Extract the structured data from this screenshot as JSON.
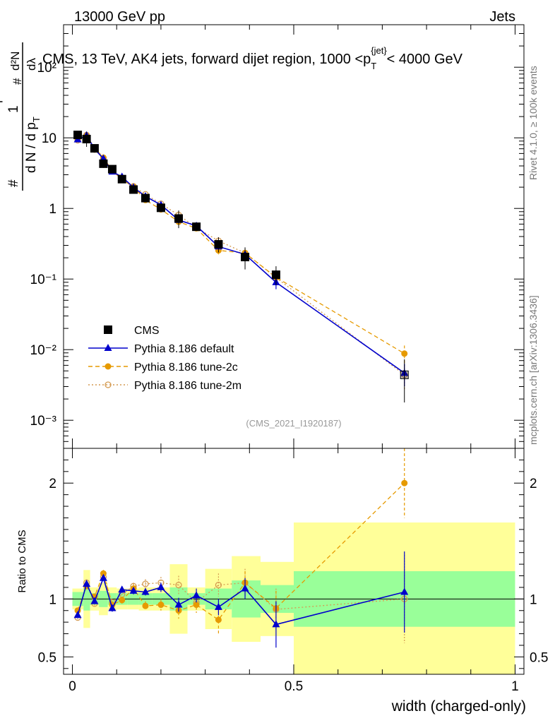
{
  "header": {
    "left": "13000 GeV pp",
    "right": "Jets"
  },
  "title": "CMS, 13 TeV, AK4 jets, forward dijet region, 1000 <p",
  "title_sub": "T",
  "title_sup": "{jet}",
  "title_end": "< 4000 GeV",
  "side_text_top": "Rivet 4.1.0, ≥ 100k events",
  "side_text_bottom": "mcplots.cern.ch [arXiv:1306.3436]",
  "analysis_tag": "(CMS_2021_I1920187)",
  "ylabel_top": {
    "num_symbol": "#",
    "num_one": "1",
    "num_dn": "d²N",
    "num_dp": "d p",
    "num_dl": "dλ",
    "den_symbol": "#",
    "den_text": "d N / d p",
    "sub": "T"
  },
  "ylabel_bottom": "Ratio to CMS",
  "xlabel": "width (charged-only)",
  "legend": [
    {
      "label": "CMS",
      "key": "cms"
    },
    {
      "label": "Pythia 8.186 default",
      "key": "default"
    },
    {
      "label": "Pythia 8.186 tune-2c",
      "key": "tune2c"
    },
    {
      "label": "Pythia 8.186 tune-2m",
      "key": "tune2m"
    }
  ],
  "colors": {
    "cms": "#000000",
    "default": "#0000cc",
    "tune2c": "#e69a00",
    "tune2m": "#d49a50",
    "band_inner": "#99ff99",
    "band_outer": "#ffff99"
  },
  "chart_data": {
    "type": "scatter",
    "x_axis": {
      "range": [
        -0.02,
        1.02
      ],
      "ticks": [
        0,
        0.5,
        1
      ],
      "tick_labels": [
        "0",
        "0.5",
        "1"
      ],
      "label": "width (charged-only)"
    },
    "y_axis_top": {
      "scale": "log",
      "range": [
        0.0004,
        400
      ],
      "tick_labels": [
        "10⁻³",
        "10⁻²",
        "10⁻¹",
        "1",
        "10",
        "10²"
      ]
    },
    "y_axis_bottom": {
      "range": [
        0.35,
        2.3
      ],
      "ticks": [
        0.5,
        1,
        2
      ],
      "tick_labels": [
        "0.5",
        "1",
        "2"
      ],
      "label": "Ratio to CMS"
    },
    "bins": [
      {
        "lo": 0.0,
        "hi": 0.025,
        "x": 0.012,
        "cms": 11.0,
        "inner": 0.06,
        "outer": 0.09
      },
      {
        "lo": 0.025,
        "hi": 0.04,
        "x": 0.032,
        "cms": 9.6,
        "inner": 0.1,
        "outer": 0.25
      },
      {
        "lo": 0.04,
        "hi": 0.06,
        "x": 0.05,
        "cms": 7.1,
        "inner": 0.05,
        "outer": 0.1
      },
      {
        "lo": 0.06,
        "hi": 0.08,
        "x": 0.07,
        "cms": 4.3,
        "inner": 0.07,
        "outer": 0.14
      },
      {
        "lo": 0.08,
        "hi": 0.1,
        "x": 0.09,
        "cms": 3.6,
        "inner": 0.05,
        "outer": 0.1
      },
      {
        "lo": 0.1,
        "hi": 0.125,
        "x": 0.112,
        "cms": 2.6,
        "inner": 0.05,
        "outer": 0.09
      },
      {
        "lo": 0.125,
        "hi": 0.15,
        "x": 0.138,
        "cms": 1.85,
        "inner": 0.05,
        "outer": 0.09
      },
      {
        "lo": 0.15,
        "hi": 0.18,
        "x": 0.165,
        "cms": 1.4,
        "inner": 0.05,
        "outer": 0.1
      },
      {
        "lo": 0.18,
        "hi": 0.22,
        "x": 0.2,
        "cms": 1.02,
        "inner": 0.05,
        "outer": 0.1
      },
      {
        "lo": 0.22,
        "hi": 0.26,
        "x": 0.24,
        "cms": 0.72,
        "inner": 0.1,
        "outer": 0.3
      },
      {
        "lo": 0.26,
        "hi": 0.3,
        "x": 0.28,
        "cms": 0.55,
        "inner": 0.05,
        "outer": 0.1
      },
      {
        "lo": 0.3,
        "hi": 0.36,
        "x": 0.33,
        "cms": 0.31,
        "inner": 0.09,
        "outer": 0.26
      },
      {
        "lo": 0.36,
        "hi": 0.425,
        "x": 0.39,
        "cms": 0.205,
        "inner": 0.16,
        "outer": 0.37
      },
      {
        "lo": 0.425,
        "hi": 0.5,
        "x": 0.46,
        "cms": 0.115,
        "inner": 0.12,
        "outer": 0.32
      },
      {
        "lo": 0.5,
        "hi": 1.0,
        "x": 0.75,
        "cms": 0.0044,
        "inner": 0.24,
        "outer": 0.66
      }
    ],
    "series": [
      {
        "name": "Pythia 8.186 default",
        "key": "default",
        "marker": "triangle",
        "dash": "",
        "ratio": [
          0.86,
          1.13,
          0.98,
          1.18,
          0.92,
          1.08,
          1.07,
          1.06,
          1.1,
          0.95,
          1.03,
          0.93,
          1.09,
          0.78,
          1.06
        ],
        "err": [
          0.02,
          0.02,
          0.02,
          0.02,
          0.03,
          0.03,
          0.03,
          0.03,
          0.04,
          0.06,
          0.06,
          0.07,
          0.09,
          0.2,
          0.35
        ]
      },
      {
        "name": "Pythia 8.186 tune-2c",
        "key": "tune2c",
        "marker": "circle",
        "dash": "6,4",
        "ratio": [
          0.9,
          1.11,
          1.02,
          1.22,
          0.95,
          0.99,
          1.09,
          0.94,
          0.95,
          0.9,
          0.95,
          0.82,
          1.14,
          0.92,
          2.0
        ],
        "err": [
          0.02,
          0.02,
          0.02,
          0.03,
          0.03,
          0.03,
          0.04,
          0.04,
          0.05,
          0.07,
          0.07,
          0.12,
          0.1,
          0.15,
          0.3
        ]
      },
      {
        "name": "Pythia 8.186 tune-2m",
        "key": "tune2m",
        "marker": "open-circle",
        "dash": "2,3",
        "ratio": [
          0.84,
          1.14,
          0.96,
          1.19,
          0.97,
          1.04,
          1.11,
          1.13,
          1.14,
          1.12,
          0.97,
          1.12,
          1.14,
          0.91,
          1.0
        ],
        "err": [
          0.02,
          0.02,
          0.02,
          0.02,
          0.03,
          0.03,
          0.03,
          0.04,
          0.05,
          0.08,
          0.07,
          0.1,
          0.12,
          0.18,
          0.38
        ]
      }
    ]
  }
}
